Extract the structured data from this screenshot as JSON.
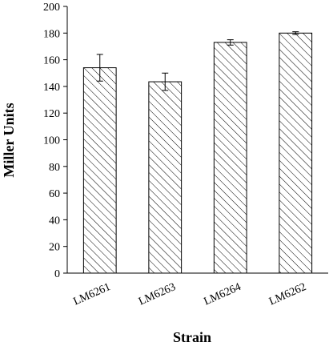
{
  "chart_data": {
    "type": "bar",
    "categories": [
      "LM6261",
      "LM6263",
      "LM6264",
      "LM6262"
    ],
    "values": [
      154,
      143.5,
      173,
      180
    ],
    "errors": [
      10,
      6.5,
      2,
      1
    ],
    "title": "",
    "xlabel": "Strain",
    "ylabel": "Miller Units",
    "ylim": [
      0,
      200
    ],
    "yticks": [
      0,
      20,
      40,
      60,
      80,
      100,
      120,
      140,
      160,
      180,
      200
    ],
    "grid": false,
    "legend": "none",
    "bar_fill": "hatched",
    "colors": {
      "bar_stroke": "#000000",
      "hatch": "#000000",
      "axis": "#000000"
    }
  }
}
